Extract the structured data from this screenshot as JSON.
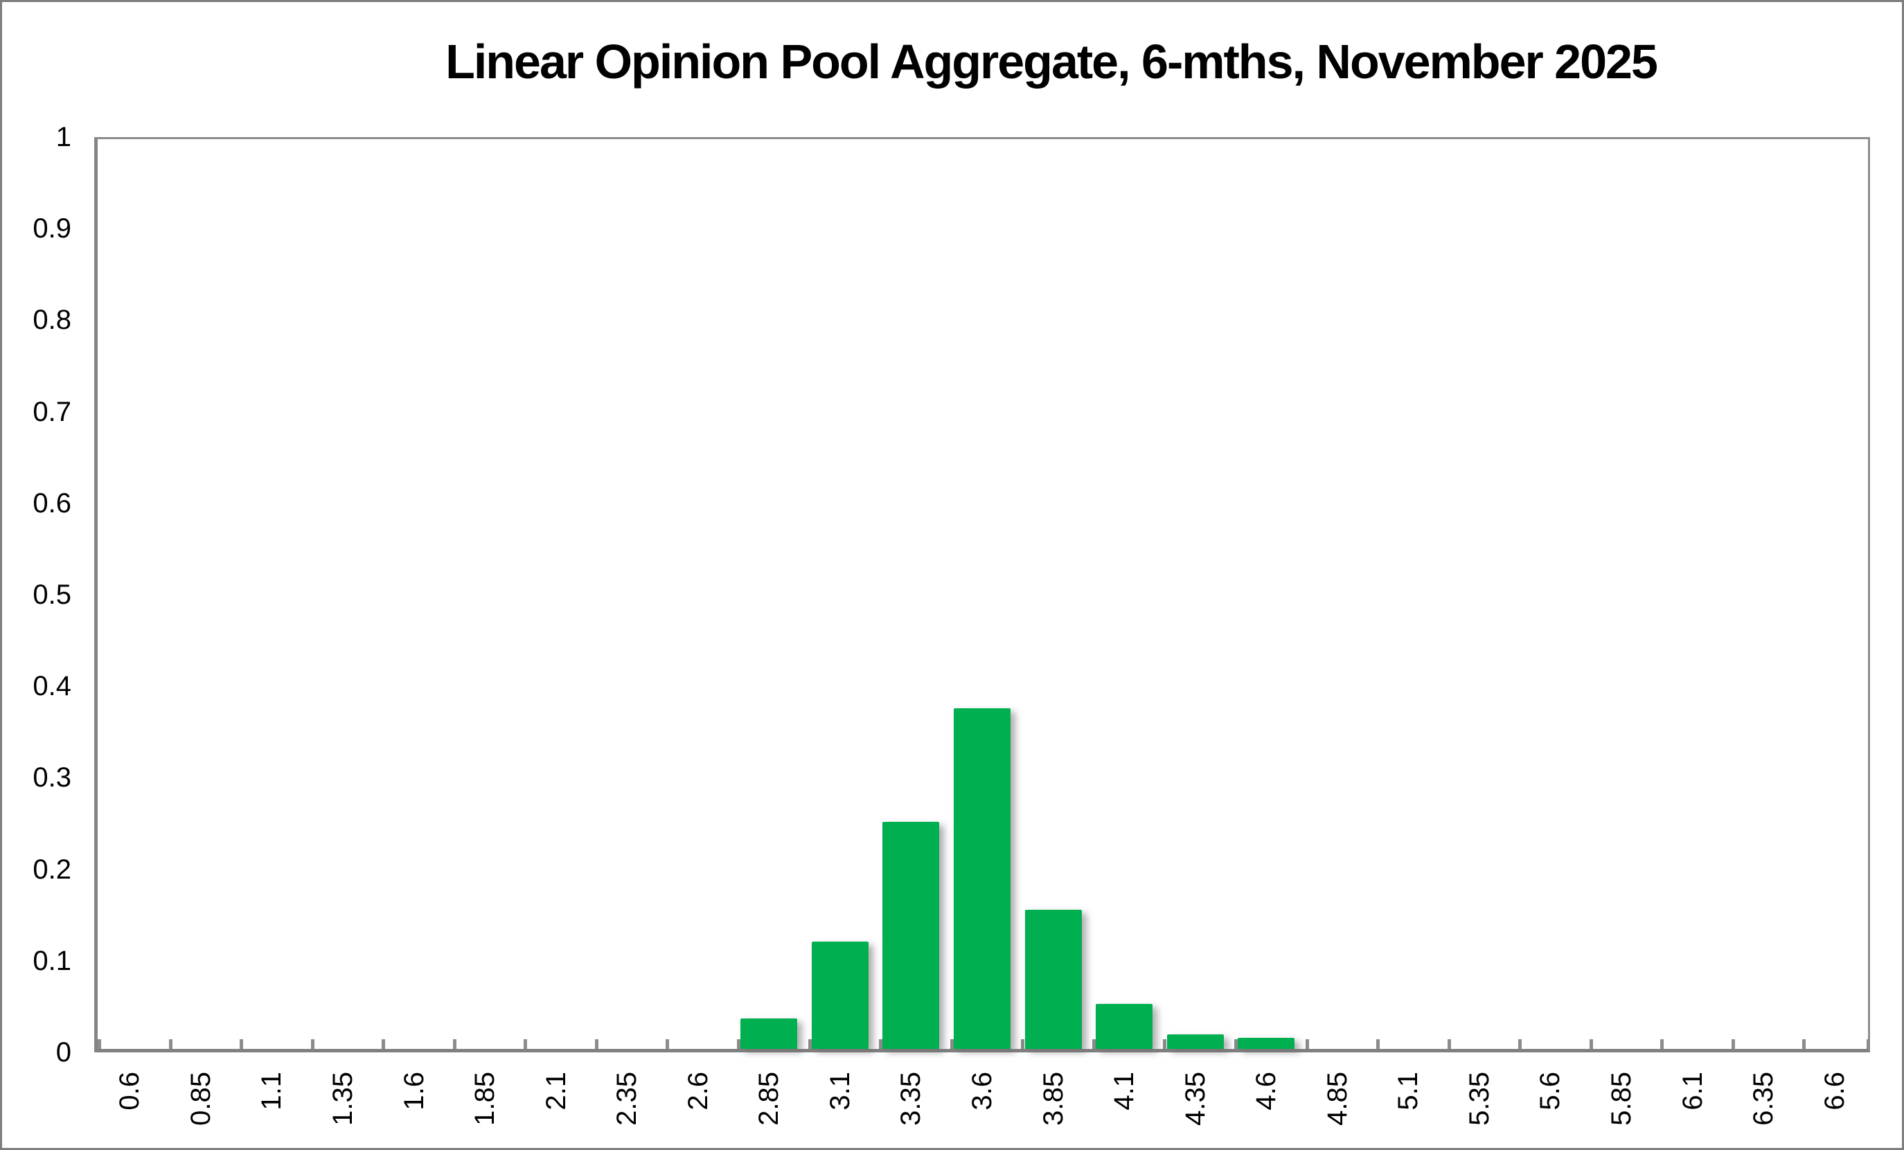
{
  "title": "Linear Opinion Pool Aggregate, 6-mths, November 2025",
  "chart_data": {
    "type": "bar",
    "title": "Linear Opinion Pool Aggregate, 6-mths, November 2025",
    "xlabel": "",
    "ylabel": "",
    "categories": [
      "0.6",
      "0.85",
      "1.1",
      "1.35",
      "1.6",
      "1.85",
      "2.1",
      "2.35",
      "2.6",
      "2.85",
      "3.1",
      "3.35",
      "3.6",
      "3.85",
      "4.1",
      "4.35",
      "4.6",
      "4.85",
      "5.1",
      "5.35",
      "5.6",
      "5.85",
      "6.1",
      "6.35",
      "6.6"
    ],
    "values": [
      0,
      0,
      0,
      0,
      0,
      0,
      0,
      0,
      0,
      0.033,
      0.117,
      0.248,
      0.372,
      0.152,
      0.049,
      0.016,
      0.012,
      0,
      0,
      0,
      0,
      0,
      0,
      0,
      0
    ],
    "ylim": [
      0,
      1
    ],
    "ytick_labels": [
      "0",
      "0.1",
      "0.2",
      "0.3",
      "0.4",
      "0.5",
      "0.6",
      "0.7",
      "0.8",
      "0.9",
      "1"
    ],
    "grid": false,
    "legend": "none",
    "bar_color": "#00AF50",
    "axis_color": "#8C8C8C",
    "text_color": "#000000",
    "background_color": "#FFFFFF"
  }
}
